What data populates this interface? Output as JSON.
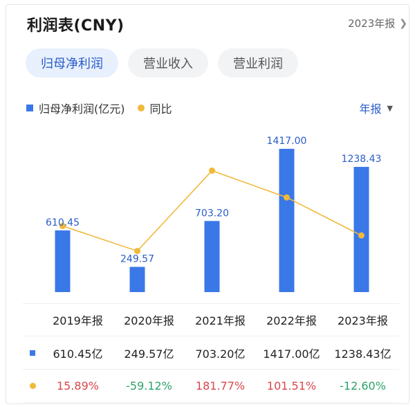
{
  "header": {
    "title": "利润表(CNY)",
    "period": "2023年报"
  },
  "tabs": [
    {
      "label": "归母净利润",
      "active": true
    },
    {
      "label": "营业收入",
      "active": false
    },
    {
      "label": "营业利润",
      "active": false
    }
  ],
  "legend": {
    "bar_label": "归母净利润(亿元)",
    "line_label": "同比"
  },
  "period_select": "年报",
  "colors": {
    "bar": "#3b78e7",
    "line": "#f0b93a",
    "positive": "#d9474b",
    "negative": "#2ba26a",
    "accent": "#2a5cc8"
  },
  "chart_data": {
    "type": "bar",
    "categories": [
      "2019年报",
      "2020年报",
      "2021年报",
      "2022年报",
      "2023年报"
    ],
    "series": [
      {
        "name": "归母净利润(亿元)",
        "type": "bar",
        "values": [
          610.45,
          249.57,
          703.2,
          1417.0,
          1238.43
        ],
        "labels": [
          "610.45",
          "249.57",
          "703.20",
          "1417.00",
          "1238.43"
        ]
      },
      {
        "name": "同比",
        "type": "line",
        "values": [
          15.89,
          -59.12,
          181.77,
          101.51,
          -12.6
        ]
      }
    ],
    "grid": false,
    "legend_position": "top-left"
  },
  "table": {
    "columns": [
      "2019年报",
      "2020年报",
      "2021年报",
      "2022年报",
      "2023年报"
    ],
    "profit_row": [
      "610.45亿",
      "249.57亿",
      "703.20亿",
      "1417.00亿",
      "1238.43亿"
    ],
    "yoy_row": [
      "15.89%",
      "-59.12%",
      "181.77%",
      "101.51%",
      "-12.60%"
    ]
  }
}
